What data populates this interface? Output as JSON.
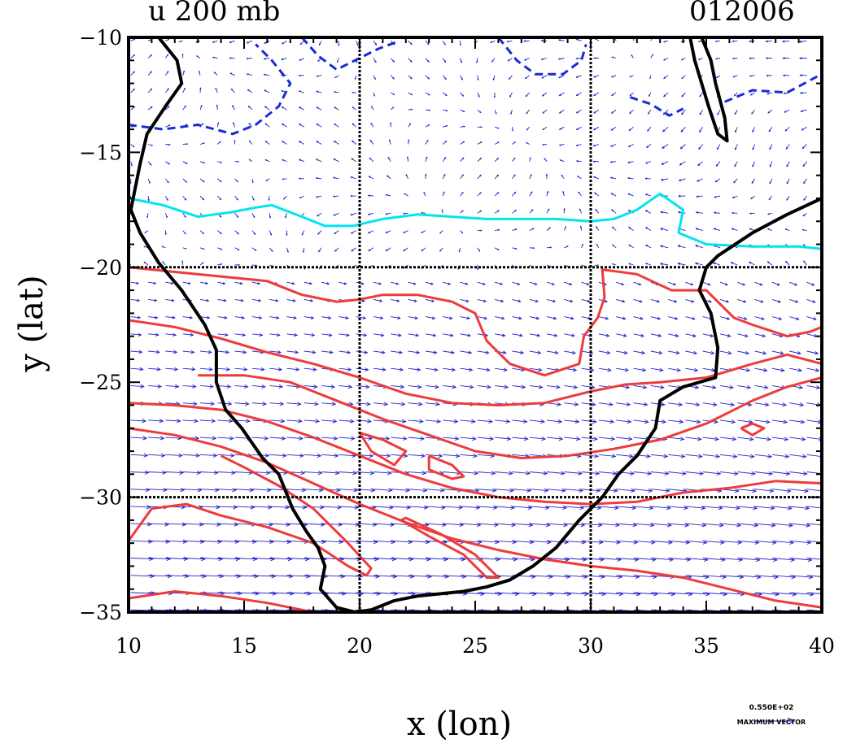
{
  "header": {
    "left_title": "u 200 mb",
    "right_title": "012006"
  },
  "axes": {
    "xlabel": "x (lon)",
    "ylabel": "y (lat)",
    "xlim": [
      10,
      40
    ],
    "ylim": [
      -35,
      -10
    ],
    "xticks": [
      "10",
      "15",
      "20",
      "25",
      "30",
      "35",
      "40"
    ],
    "yticks": [
      "−10",
      "−15",
      "−20",
      "−25",
      "−30",
      "−35"
    ],
    "grid_lon": [
      20,
      30
    ],
    "grid_lat": [
      -20,
      -30
    ]
  },
  "legend": {
    "ref_vector_value": "0.550E+02",
    "ref_vector_label": "MAXIMUM VECTOR"
  },
  "colors": {
    "vectors": "#2222cc",
    "negative_contour": "#1a2ad6",
    "zero_contour": "#00e5ee",
    "positive_contour": "#ee3b3b",
    "coastline": "#000000"
  },
  "chart_data": {
    "type": "map",
    "field": "u wind at 200 mb with wind vectors",
    "coastline": [
      [
        11.3,
        -10
      ],
      [
        12.1,
        -11
      ],
      [
        12.3,
        -12
      ],
      [
        11.6,
        -13
      ],
      [
        10.8,
        -14.2
      ],
      [
        10.5,
        -15.5
      ],
      [
        10.3,
        -16.5
      ],
      [
        10.1,
        -17.5
      ],
      [
        10.5,
        -18.5
      ],
      [
        11.3,
        -19.8
      ],
      [
        12.3,
        -21
      ],
      [
        13.3,
        -22.5
      ],
      [
        13.8,
        -23.6
      ],
      [
        13.8,
        -25
      ],
      [
        14.2,
        -26.2
      ],
      [
        14.9,
        -27
      ],
      [
        15.8,
        -28.3
      ],
      [
        16.5,
        -29
      ],
      [
        17.1,
        -30.5
      ],
      [
        17.7,
        -31.5
      ],
      [
        18.2,
        -32.2
      ],
      [
        18.5,
        -33
      ],
      [
        18.3,
        -34
      ],
      [
        19.0,
        -34.8
      ],
      [
        19.8,
        -35
      ],
      [
        20.5,
        -34.9
      ],
      [
        21.5,
        -34.5
      ],
      [
        22.5,
        -34.3
      ],
      [
        23.5,
        -34.2
      ],
      [
        24.5,
        -34.1
      ],
      [
        25.5,
        -33.9
      ],
      [
        26.5,
        -33.6
      ],
      [
        27.5,
        -33.0
      ],
      [
        28.5,
        -32.2
      ],
      [
        29.5,
        -31.0
      ],
      [
        30.5,
        -30.0
      ],
      [
        31.2,
        -29.0
      ],
      [
        32.0,
        -28.2
      ],
      [
        32.8,
        -27.0
      ],
      [
        33.0,
        -25.8
      ],
      [
        34.0,
        -25.2
      ],
      [
        35.4,
        -24.8
      ],
      [
        35.5,
        -23.5
      ],
      [
        35.2,
        -22.0
      ],
      [
        34.7,
        -21.0
      ],
      [
        35.0,
        -20.0
      ],
      [
        35.5,
        -19.5
      ],
      [
        37.0,
        -18.5
      ],
      [
        38.5,
        -17.7
      ],
      [
        40.0,
        -17.0
      ]
    ],
    "coastline_north": [
      [
        34.8,
        -10
      ],
      [
        35.2,
        -11
      ],
      [
        35.4,
        -12
      ],
      [
        35.8,
        -13.5
      ],
      [
        35.9,
        -14.5
      ],
      [
        35.5,
        -14.2
      ],
      [
        35.1,
        -13.0
      ],
      [
        34.8,
        -12.0
      ],
      [
        34.5,
        -11.0
      ],
      [
        34.3,
        -10.0
      ]
    ],
    "contours": [
      {
        "kind": "negative",
        "points": [
          [
            10,
            -13.8
          ],
          [
            11.5,
            -14.0
          ],
          [
            13.0,
            -13.8
          ],
          [
            14.5,
            -14.2
          ],
          [
            15.5,
            -13.8
          ],
          [
            16.5,
            -13.0
          ],
          [
            17.0,
            -12.0
          ],
          [
            16.2,
            -11.0
          ],
          [
            15.5,
            -10.3
          ]
        ]
      },
      {
        "kind": "negative",
        "points": [
          [
            17.5,
            -10.0
          ],
          [
            18.2,
            -10.8
          ],
          [
            19.0,
            -11.4
          ],
          [
            19.8,
            -11.0
          ],
          [
            20.8,
            -10.5
          ],
          [
            21.6,
            -10.2
          ]
        ]
      },
      {
        "kind": "negative",
        "points": [
          [
            26.0,
            -10
          ],
          [
            26.8,
            -11.0
          ],
          [
            27.6,
            -11.6
          ],
          [
            28.8,
            -11.6
          ],
          [
            29.6,
            -11.0
          ],
          [
            29.8,
            -10.3
          ]
        ]
      },
      {
        "kind": "negative",
        "points": [
          [
            31.7,
            -12.6
          ],
          [
            32.6,
            -12.9
          ],
          [
            33.4,
            -13.4
          ],
          [
            34.0,
            -13.1
          ]
        ]
      },
      {
        "kind": "negative",
        "points": [
          [
            35.8,
            -12.8
          ],
          [
            37.0,
            -12.3
          ],
          [
            38.5,
            -12.4
          ],
          [
            39.8,
            -11.7
          ]
        ]
      },
      {
        "kind": "zero",
        "points": [
          [
            10.0,
            -17.0
          ],
          [
            11.5,
            -17.3
          ],
          [
            13.0,
            -17.8
          ],
          [
            14.5,
            -17.6
          ],
          [
            15.5,
            -17.4
          ],
          [
            16.2,
            -17.3
          ],
          [
            17.5,
            -17.8
          ],
          [
            18.5,
            -18.2
          ],
          [
            19.7,
            -18.2
          ],
          [
            21.0,
            -17.9
          ],
          [
            22.5,
            -17.7
          ],
          [
            24.0,
            -17.8
          ],
          [
            25.5,
            -17.9
          ],
          [
            27.0,
            -17.9
          ],
          [
            28.5,
            -17.9
          ],
          [
            30.0,
            -18.0
          ],
          [
            31.0,
            -17.9
          ],
          [
            32.0,
            -17.5
          ],
          [
            33.0,
            -16.8
          ],
          [
            34.0,
            -17.5
          ],
          [
            33.8,
            -18.5
          ],
          [
            35.0,
            -19.0
          ],
          [
            37.0,
            -19.1
          ],
          [
            39.0,
            -19.1
          ],
          [
            40.0,
            -19.2
          ]
        ]
      },
      {
        "kind": "positive",
        "points": [
          [
            10.0,
            -20.0
          ],
          [
            12.0,
            -20.2
          ],
          [
            14.0,
            -20.4
          ],
          [
            16.0,
            -20.6
          ],
          [
            17.5,
            -21.2
          ],
          [
            19.0,
            -21.5
          ],
          [
            20.0,
            -21.4
          ],
          [
            21.0,
            -21.2
          ],
          [
            22.5,
            -21.2
          ],
          [
            24.0,
            -21.5
          ],
          [
            25.0,
            -22.0
          ],
          [
            25.5,
            -23.2
          ],
          [
            26.5,
            -24.2
          ],
          [
            28.0,
            -24.7
          ],
          [
            29.5,
            -24.2
          ],
          [
            29.7,
            -23.0
          ],
          [
            30.3,
            -22.2
          ],
          [
            30.6,
            -21.3
          ],
          [
            30.5,
            -20.1
          ],
          [
            32.0,
            -20.3
          ],
          [
            33.5,
            -21.0
          ],
          [
            35.0,
            -21.0
          ],
          [
            35.5,
            -21.5
          ],
          [
            36.2,
            -22.2
          ],
          [
            37.0,
            -22.5
          ],
          [
            38.5,
            -23.0
          ],
          [
            39.5,
            -22.8
          ],
          [
            40.0,
            -22.6
          ]
        ]
      },
      {
        "kind": "positive",
        "points": [
          [
            10.0,
            -22.3
          ],
          [
            12.0,
            -22.6
          ],
          [
            14.0,
            -23.1
          ],
          [
            16.0,
            -23.7
          ],
          [
            18.0,
            -24.2
          ],
          [
            20.0,
            -24.8
          ],
          [
            22.0,
            -25.5
          ],
          [
            24.0,
            -25.9
          ],
          [
            26.0,
            -26.0
          ],
          [
            28.0,
            -25.9
          ],
          [
            30.0,
            -25.4
          ],
          [
            31.5,
            -25.1
          ],
          [
            33.0,
            -25.0
          ],
          [
            35.0,
            -24.8
          ],
          [
            37.0,
            -24.2
          ],
          [
            38.5,
            -23.8
          ],
          [
            40.0,
            -24.2
          ]
        ]
      },
      {
        "kind": "positive",
        "points": [
          [
            13.0,
            -24.7
          ],
          [
            15.0,
            -24.7
          ],
          [
            17.0,
            -25.0
          ],
          [
            19.0,
            -25.8
          ],
          [
            21.0,
            -26.6
          ],
          [
            23.0,
            -27.3
          ],
          [
            25.0,
            -28.0
          ],
          [
            27.0,
            -28.3
          ],
          [
            29.0,
            -28.2
          ],
          [
            31.0,
            -27.9
          ],
          [
            33.0,
            -27.5
          ],
          [
            35.0,
            -26.8
          ],
          [
            37.0,
            -25.8
          ],
          [
            38.5,
            -25.2
          ],
          [
            40.0,
            -24.8
          ]
        ]
      },
      {
        "kind": "positive",
        "points": [
          [
            10.0,
            -25.9
          ],
          [
            12.0,
            -26.0
          ],
          [
            14.0,
            -26.2
          ],
          [
            16.0,
            -26.7
          ],
          [
            18.0,
            -27.4
          ],
          [
            20.0,
            -28.2
          ],
          [
            22.0,
            -29.0
          ],
          [
            24.0,
            -29.6
          ],
          [
            26.0,
            -30.0
          ],
          [
            28.0,
            -30.2
          ],
          [
            30.0,
            -30.3
          ],
          [
            32.0,
            -30.2
          ],
          [
            34.0,
            -29.8
          ],
          [
            36.0,
            -29.6
          ],
          [
            38.0,
            -29.3
          ],
          [
            40.0,
            -29.4
          ]
        ]
      },
      {
        "kind": "positive",
        "points": [
          [
            10.0,
            -27.0
          ],
          [
            12.0,
            -27.3
          ],
          [
            14.0,
            -27.8
          ],
          [
            16.0,
            -28.5
          ],
          [
            18.0,
            -29.4
          ],
          [
            20.0,
            -30.3
          ],
          [
            22.0,
            -31.1
          ],
          [
            24.0,
            -31.8
          ],
          [
            26.0,
            -32.3
          ],
          [
            28.0,
            -32.7
          ],
          [
            30.0,
            -33.0
          ],
          [
            32.0,
            -33.2
          ],
          [
            34.0,
            -33.5
          ],
          [
            36.0,
            -34.0
          ],
          [
            38.0,
            -34.5
          ],
          [
            40.0,
            -34.8
          ]
        ]
      },
      {
        "kind": "positive",
        "points": [
          [
            10.0,
            -31.9
          ],
          [
            11.0,
            -30.5
          ],
          [
            12.5,
            -30.3
          ],
          [
            14.0,
            -30.8
          ],
          [
            16.0,
            -31.3
          ],
          [
            18.0,
            -32.0
          ],
          [
            19.5,
            -33.0
          ],
          [
            20.3,
            -33.4
          ],
          [
            20.5,
            -33.1
          ],
          [
            19.5,
            -32.0
          ],
          [
            18.0,
            -30.5
          ],
          [
            16.5,
            -29.5
          ],
          [
            15.0,
            -28.7
          ],
          [
            14.0,
            -28.2
          ]
        ]
      },
      {
        "kind": "positive",
        "points": [
          [
            21.8,
            -31.0
          ],
          [
            23.0,
            -31.7
          ],
          [
            24.5,
            -32.5
          ],
          [
            25.5,
            -33.5
          ],
          [
            26.0,
            -33.5
          ],
          [
            25.0,
            -32.5
          ],
          [
            23.5,
            -31.6
          ],
          [
            22.0,
            -30.9
          ],
          [
            21.8,
            -31.0
          ]
        ]
      },
      {
        "kind": "positive",
        "points": [
          [
            20.0,
            -27.2
          ],
          [
            21.0,
            -27.5
          ],
          [
            22.0,
            -28.0
          ],
          [
            21.5,
            -28.6
          ],
          [
            20.5,
            -28.0
          ],
          [
            20.0,
            -27.2
          ]
        ]
      },
      {
        "kind": "positive",
        "points": [
          [
            23.0,
            -28.2
          ],
          [
            24.0,
            -28.6
          ],
          [
            24.5,
            -29.1
          ],
          [
            24.0,
            -29.2
          ],
          [
            23.0,
            -28.8
          ],
          [
            23.0,
            -28.2
          ]
        ]
      },
      {
        "kind": "positive",
        "points": [
          [
            10.0,
            -34.4
          ],
          [
            12.0,
            -34.1
          ],
          [
            14.0,
            -34.3
          ],
          [
            16.0,
            -34.6
          ],
          [
            18.0,
            -35.0
          ]
        ]
      },
      {
        "kind": "positive",
        "points": [
          [
            36.5,
            -27.0
          ],
          [
            37.0,
            -26.8
          ],
          [
            37.5,
            -27.0
          ],
          [
            37.0,
            -27.3
          ],
          [
            36.5,
            -27.0
          ]
        ]
      }
    ]
  }
}
